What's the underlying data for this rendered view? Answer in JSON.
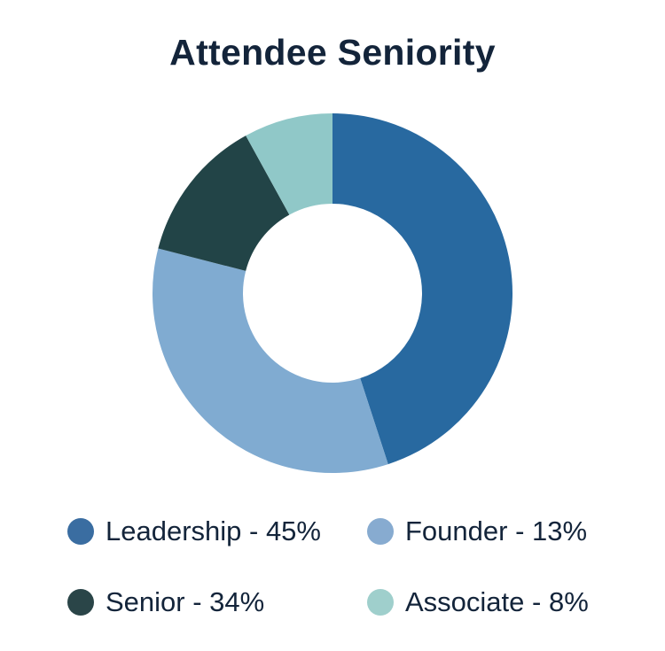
{
  "chart_data": {
    "type": "pie",
    "title": "Attendee Seniority",
    "donut": true,
    "categories": [
      "Leadership",
      "Senior",
      "Founder",
      "Associate"
    ],
    "values": [
      45,
      34,
      13,
      8
    ],
    "colors": [
      "#2869a0",
      "#80abd1",
      "#224447",
      "#90c8c8"
    ],
    "legend_colors": [
      "#3a6da1",
      "#87abd0",
      "#2a4548",
      "#9fcfcc"
    ],
    "legend": [
      "Leadership - 45%",
      "Founder - 13%",
      "Senior - 34%",
      "Associate - 8%"
    ],
    "legend_placement": "bottom"
  }
}
